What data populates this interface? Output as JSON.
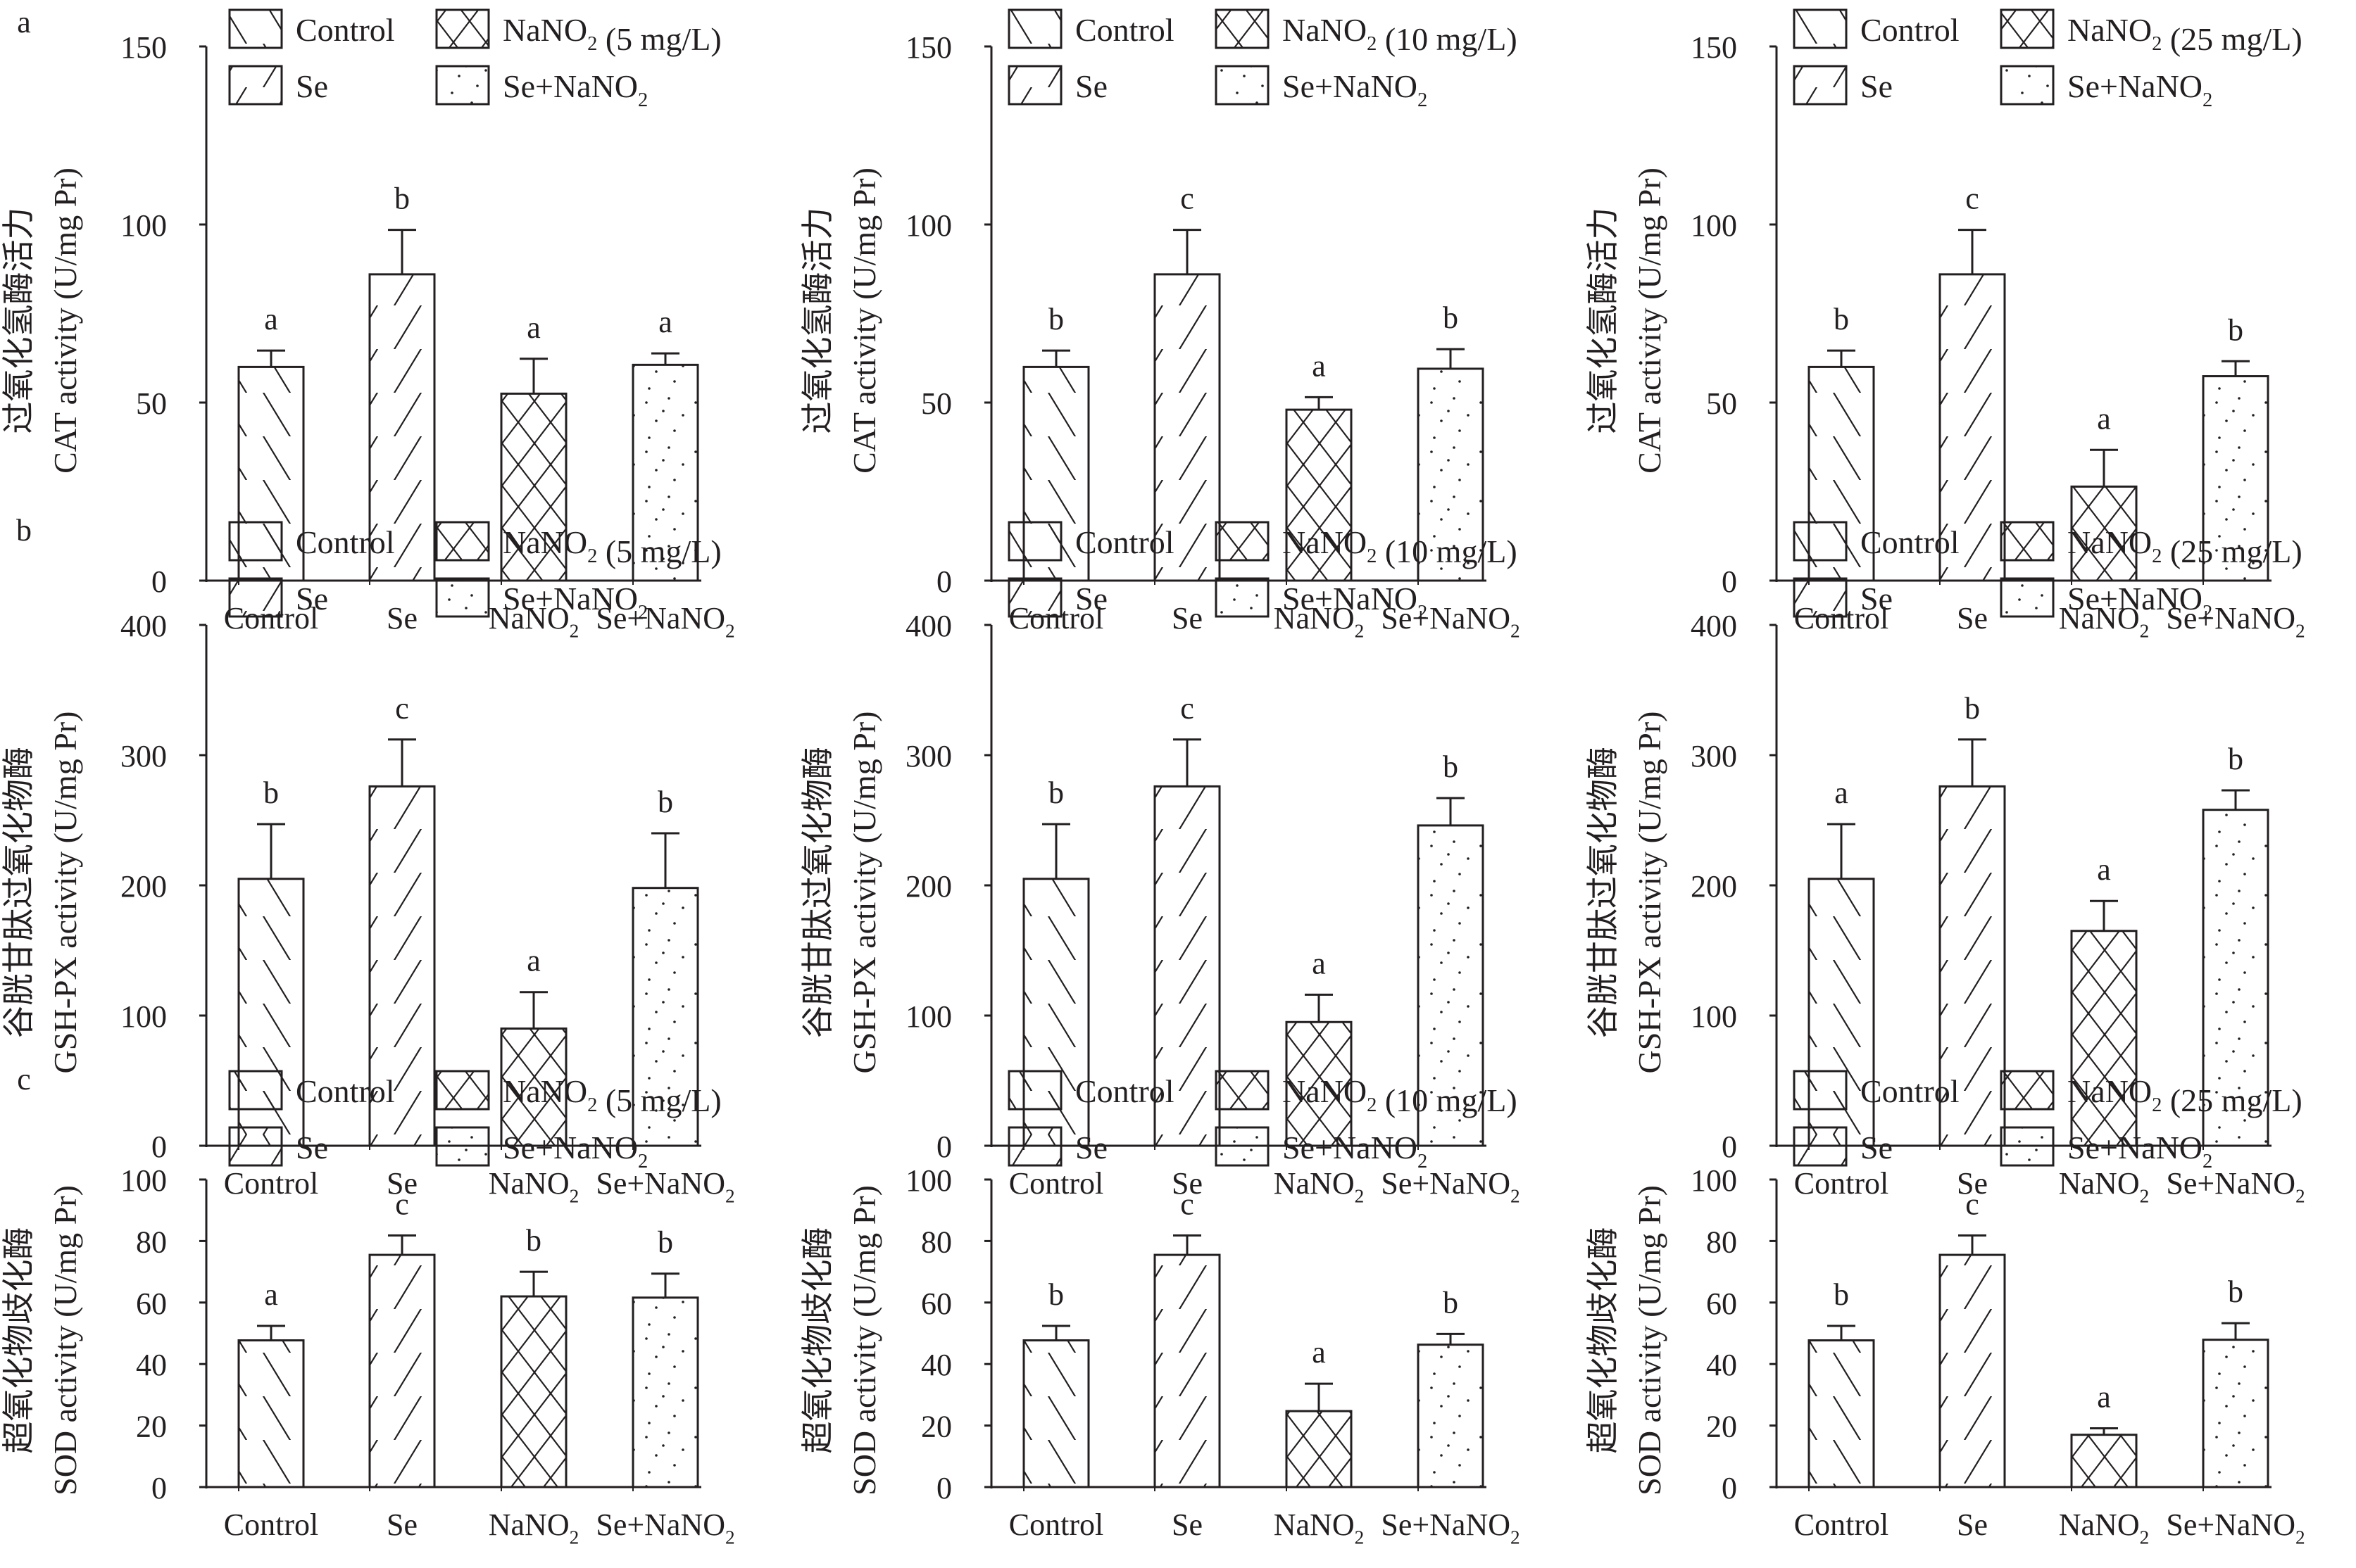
{
  "figure": {
    "rows": [
      {
        "label": "a",
        "ylabel_cn": "过氧化氢酶活力",
        "ylabel_en": "CAT activity (U/mg Pr)",
        "yticks": [
          0,
          50,
          100,
          150
        ],
        "ylim": [
          0,
          150
        ]
      },
      {
        "label": "b",
        "ylabel_cn": "谷胱甘肽过氧化物酶",
        "ylabel_en": "GSH-PX activity (U/mg Pr)",
        "yticks": [
          0,
          100,
          200,
          300,
          400
        ],
        "ylim": [
          0,
          400
        ]
      },
      {
        "label": "c",
        "ylabel_cn": "超氧化物歧化酶",
        "ylabel_en": "SOD activity (U/mg Pr)",
        "yticks": [
          0,
          20,
          40,
          60,
          80,
          100
        ],
        "ylim": [
          0,
          100
        ]
      }
    ],
    "columns": [
      {
        "nano2_legend": "NaNO₂ (5 mg/L)"
      },
      {
        "nano2_legend": "NaNO₂ (10 mg/L)"
      },
      {
        "nano2_legend": "NaNO₂ (25 mg/L)"
      }
    ]
  },
  "chart_data": [
    {
      "type": "bar",
      "panel": "a",
      "title": "",
      "xlabel": "",
      "ylabel": "过氧化氢酶活力 CAT activity (U/mg Pr)",
      "ylim": [
        0,
        150
      ],
      "yticks": [
        0,
        50,
        100,
        150
      ],
      "categories": [
        "Control",
        "Se",
        "NaNO₂",
        "Se+NaNO₂"
      ],
      "legend": [
        "Control",
        "Se",
        "NaNO₂ (5 mg/L)",
        "Se+NaNO₂"
      ],
      "legend_position": "top",
      "values": [
        60,
        86,
        52.5,
        60.6
      ],
      "errors": [
        4.6,
        12.5,
        9.8,
        3.2
      ],
      "letters": [
        "a",
        "b",
        "a",
        "a"
      ]
    },
    {
      "type": "bar",
      "panel": "a",
      "title": "",
      "xlabel": "",
      "ylabel": "过氧化氢酶活力 CAT activity (U/mg Pr)",
      "ylim": [
        0,
        150
      ],
      "yticks": [
        0,
        50,
        100,
        150
      ],
      "categories": [
        "Control",
        "Se",
        "NaNO₂",
        "Se+NaNO₂"
      ],
      "legend": [
        "Control",
        "Se",
        "NaNO₂ (10 mg/L)",
        "Se+NaNO₂"
      ],
      "legend_position": "top",
      "values": [
        60,
        86,
        48,
        59.5
      ],
      "errors": [
        4.6,
        12.5,
        3.5,
        5.5
      ],
      "letters": [
        "b",
        "c",
        "a",
        "b"
      ]
    },
    {
      "type": "bar",
      "panel": "a",
      "title": "",
      "xlabel": "",
      "ylabel": "过氧化氢酶活力 CAT activity (U/mg Pr)",
      "ylim": [
        0,
        150
      ],
      "yticks": [
        0,
        50,
        100,
        150
      ],
      "categories": [
        "Control",
        "Se",
        "NaNO₂",
        "Se+NaNO₂"
      ],
      "legend": [
        "Control",
        "Se",
        "NaNO₂ (25 mg/L)",
        "Se+NaNO₂"
      ],
      "legend_position": "top",
      "values": [
        60,
        86,
        26.4,
        57.4
      ],
      "errors": [
        4.6,
        12.5,
        10.3,
        4.2
      ],
      "letters": [
        "b",
        "c",
        "a",
        "b"
      ]
    },
    {
      "type": "bar",
      "panel": "b",
      "title": "",
      "xlabel": "",
      "ylabel": "谷胱甘肽过氧化物酶 GSH-PX activity (U/mg Pr)",
      "ylim": [
        0,
        400
      ],
      "yticks": [
        0,
        100,
        200,
        300,
        400
      ],
      "categories": [
        "Control",
        "Se",
        "NaNO₂",
        "Se+NaNO₂"
      ],
      "legend": [
        "Control",
        "Se",
        "NaNO₂ (5 mg/L)",
        "Se+NaNO₂"
      ],
      "legend_position": "top",
      "values": [
        205,
        276,
        90,
        198
      ],
      "errors": [
        42,
        36,
        28,
        42
      ],
      "letters": [
        "b",
        "c",
        "a",
        "b"
      ]
    },
    {
      "type": "bar",
      "panel": "b",
      "title": "",
      "xlabel": "",
      "ylabel": "谷胱甘肽过氧化物酶 GSH-PX activity (U/mg Pr)",
      "ylim": [
        0,
        400
      ],
      "yticks": [
        0,
        100,
        200,
        300,
        400
      ],
      "categories": [
        "Control",
        "Se",
        "NaNO₂",
        "Se+NaNO₂"
      ],
      "legend": [
        "Control",
        "Se",
        "NaNO₂ (10 mg/L)",
        "Se+NaNO₂"
      ],
      "legend_position": "top",
      "values": [
        205,
        276,
        95,
        246
      ],
      "errors": [
        42,
        36,
        21,
        21
      ],
      "letters": [
        "b",
        "c",
        "a",
        "b"
      ]
    },
    {
      "type": "bar",
      "panel": "b",
      "title": "",
      "xlabel": "",
      "ylabel": "谷胱甘肽过氧化物酶 GSH-PX activity (U/mg Pr)",
      "ylim": [
        0,
        400
      ],
      "yticks": [
        0,
        100,
        200,
        300,
        400
      ],
      "categories": [
        "Control",
        "Se",
        "NaNO₂",
        "Se+NaNO₂"
      ],
      "legend": [
        "Control",
        "Se",
        "NaNO₂ (25 mg/L)",
        "Se+NaNO₂"
      ],
      "legend_position": "top",
      "values": [
        205,
        276,
        165,
        258
      ],
      "errors": [
        42,
        36,
        23,
        15
      ],
      "letters": [
        "a",
        "b",
        "a",
        "b"
      ]
    },
    {
      "type": "bar",
      "panel": "c",
      "title": "",
      "xlabel": "",
      "ylabel": "超氧化物歧化酶 SOD activity (U/mg Pr)",
      "ylim": [
        0,
        100
      ],
      "yticks": [
        0,
        20,
        40,
        60,
        80,
        100
      ],
      "categories": [
        "Control",
        "Se",
        "NaNO₂",
        "Se+NaNO₂"
      ],
      "legend": [
        "Control",
        "Se",
        "NaNO₂ (5 mg/L)",
        "Se+NaNO₂"
      ],
      "legend_position": "top",
      "values": [
        47.7,
        75.5,
        62,
        61.6
      ],
      "errors": [
        4.7,
        6.3,
        8,
        7.8
      ],
      "letters": [
        "a",
        "c",
        "b",
        "b"
      ]
    },
    {
      "type": "bar",
      "panel": "c",
      "title": "",
      "xlabel": "",
      "ylabel": "超氧化物歧化酶 SOD activity (U/mg Pr)",
      "ylim": [
        0,
        100
      ],
      "yticks": [
        0,
        20,
        40,
        60,
        80,
        100
      ],
      "categories": [
        "Control",
        "Se",
        "NaNO₂",
        "Se+NaNO₂"
      ],
      "legend": [
        "Control",
        "Se",
        "NaNO₂ (10 mg/L)",
        "Se+NaNO₂"
      ],
      "legend_position": "top",
      "values": [
        47.7,
        75.5,
        24.7,
        46.3
      ],
      "errors": [
        4.7,
        6.3,
        8.9,
        3.5
      ],
      "letters": [
        "b",
        "c",
        "a",
        "b"
      ]
    },
    {
      "type": "bar",
      "panel": "c",
      "title": "",
      "xlabel": "",
      "ylabel": "超氧化物歧化酶 SOD activity (U/mg Pr)",
      "ylim": [
        0,
        100
      ],
      "yticks": [
        0,
        20,
        40,
        60,
        80,
        100
      ],
      "categories": [
        "Control",
        "Se",
        "NaNO₂",
        "Se+NaNO₂"
      ],
      "legend": [
        "Control",
        "Se",
        "NaNO₂ (25 mg/L)",
        "Se+NaNO₂"
      ],
      "legend_position": "top",
      "values": [
        47.7,
        75.5,
        17,
        47.9
      ],
      "errors": [
        4.7,
        6.3,
        2.1,
        5.4
      ],
      "letters": [
        "b",
        "c",
        "a",
        "b"
      ]
    }
  ]
}
